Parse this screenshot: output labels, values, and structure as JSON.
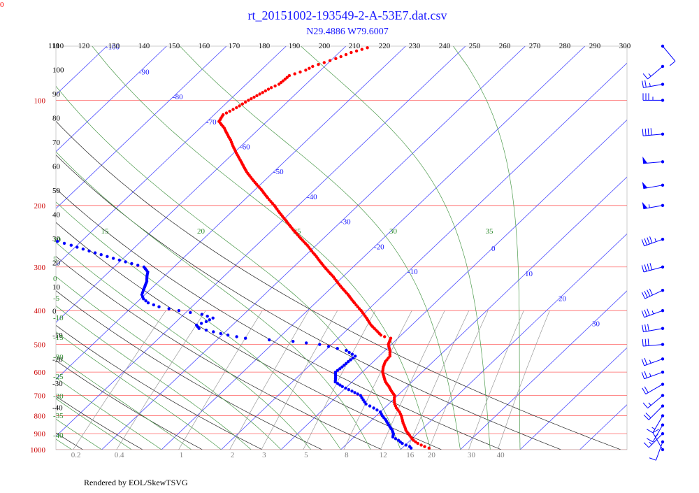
{
  "header": {
    "title": "rt_20151002-193549-2-A-53E7.dat.csv",
    "subtitle": "N29.4886 W79.6007",
    "corner_label": "0"
  },
  "footer": {
    "credit": "Rendered by EOL/SkewTSVG"
  },
  "colors": {
    "isobar": "#ff6666",
    "isotherm": "#4d4dff",
    "dry_adiabat": "#222222",
    "moist_adiabat": "#4c9a4c",
    "mixing_ratio": "#9a9a9a",
    "temperature": "#ff0000",
    "dewpoint": "#0000ff",
    "wind": "#0000ff",
    "pressure_label": "#cc0000",
    "theta_label": "#000000",
    "isotherm_label": "#1a1aff",
    "moist_label": "#2e8b2e",
    "mixing_label": "#808080"
  },
  "chart_data": {
    "type": "skew-t",
    "xlabel": "",
    "ylabel": "",
    "pressure_levels": [
      100,
      200,
      300,
      400,
      500,
      600,
      700,
      800,
      900,
      1000
    ],
    "pressure_range": [
      1000,
      70
    ],
    "temperature_range_at_surface": [
      -40,
      50
    ],
    "isotherm_labels": [
      -110,
      -100,
      -90,
      -80,
      -70,
      -60,
      -50,
      -40,
      -30,
      -20,
      -10,
      0,
      10,
      20,
      30
    ],
    "dry_adiabat_theta_K": [
      110,
      120,
      130,
      140,
      150,
      160,
      170,
      180,
      190,
      200,
      210,
      220,
      230,
      240,
      250,
      260,
      270,
      280,
      290,
      300
    ],
    "left_theta_labels": [
      110,
      100,
      90,
      80,
      70,
      60,
      50,
      40,
      30,
      20,
      10,
      0,
      -10,
      -20,
      -30,
      -40
    ],
    "moist_adiabat_thetaw_C": [
      -40,
      -35,
      -30,
      -25,
      -20,
      -15,
      -10,
      -5,
      0,
      5,
      10,
      15,
      20,
      25,
      30,
      35
    ],
    "moist_top_labels": [
      15,
      20,
      25,
      30,
      35
    ],
    "moist_left_labels": [
      10,
      5,
      0,
      -5,
      -10,
      -15,
      -20,
      -25,
      -30,
      -35,
      -40
    ],
    "mixing_ratio_gkg": [
      0.2,
      0.4,
      1,
      2,
      3,
      5,
      8,
      12,
      16,
      20,
      30,
      40
    ],
    "mixing_ratio_labels": [
      "0.2",
      "0.4",
      "1",
      "2",
      "3",
      "5",
      "8",
      "12",
      "16",
      "20",
      "30",
      "40"
    ],
    "series": [
      {
        "kind": "temperature",
        "points": [
          [
            990,
            24.5
          ],
          [
            980,
            23.5
          ],
          [
            960,
            21.8
          ],
          [
            940,
            20.5
          ],
          [
            920,
            19.5
          ],
          [
            900,
            18.5
          ],
          [
            880,
            17.5
          ],
          [
            860,
            16.7
          ],
          [
            840,
            15.8
          ],
          [
            820,
            15.0
          ],
          [
            800,
            14.2
          ],
          [
            780,
            13.2
          ],
          [
            760,
            12.0
          ],
          [
            740,
            11.0
          ],
          [
            720,
            10.2
          ],
          [
            700,
            9.5
          ],
          [
            680,
            8.2
          ],
          [
            660,
            7.0
          ],
          [
            640,
            5.6
          ],
          [
            620,
            4.5
          ],
          [
            600,
            3.4
          ],
          [
            580,
            2.6
          ],
          [
            560,
            2.0
          ],
          [
            540,
            1.8
          ],
          [
            520,
            0.8
          ],
          [
            500,
            -0.5
          ],
          [
            480,
            -1.2
          ],
          [
            475,
            -2.5
          ],
          [
            470,
            -3.4
          ],
          [
            460,
            -4.5
          ],
          [
            440,
            -6.8
          ],
          [
            420,
            -8.8
          ],
          [
            400,
            -11.0
          ],
          [
            380,
            -13.5
          ],
          [
            360,
            -16.0
          ],
          [
            340,
            -18.8
          ],
          [
            320,
            -21.6
          ],
          [
            300,
            -24.8
          ],
          [
            280,
            -28.0
          ],
          [
            260,
            -31.5
          ],
          [
            240,
            -35.5
          ],
          [
            220,
            -39.6
          ],
          [
            200,
            -44.0
          ],
          [
            190,
            -46.5
          ],
          [
            180,
            -49.0
          ],
          [
            170,
            -51.8
          ],
          [
            160,
            -54.6
          ],
          [
            150,
            -57.2
          ],
          [
            140,
            -60.0
          ],
          [
            130,
            -62.8
          ],
          [
            120,
            -66.0
          ],
          [
            115,
            -68.0
          ],
          [
            110,
            -68.5
          ],
          [
            105,
            -67.5
          ],
          [
            100,
            -66.8
          ],
          [
            96,
            -66.0
          ],
          [
            92,
            -65.2
          ],
          [
            90,
            -64.5
          ],
          [
            85,
            -64.3
          ],
          [
            82,
            -62.5
          ],
          [
            80,
            -62.0
          ],
          [
            76,
            -59.5
          ],
          [
            73,
            -58.0
          ],
          [
            70,
            -55.5
          ]
        ]
      },
      {
        "kind": "dewpoint",
        "points": [
          [
            990,
            21.5
          ],
          [
            980,
            21.0
          ],
          [
            960,
            19.2
          ],
          [
            940,
            18.0
          ],
          [
            920,
            16.5
          ],
          [
            900,
            16.0
          ],
          [
            880,
            15.2
          ],
          [
            860,
            14.2
          ],
          [
            840,
            13.2
          ],
          [
            820,
            12.2
          ],
          [
            800,
            11.0
          ],
          [
            780,
            10.0
          ],
          [
            760,
            8.2
          ],
          [
            740,
            6.2
          ],
          [
            720,
            5.0
          ],
          [
            700,
            3.8
          ],
          [
            680,
            1.6
          ],
          [
            660,
            -0.8
          ],
          [
            640,
            -2.8
          ],
          [
            620,
            -3.6
          ],
          [
            600,
            -4.5
          ],
          [
            580,
            -4.3
          ],
          [
            560,
            -4.2
          ],
          [
            540,
            -4.0
          ],
          [
            520,
            -6.5
          ],
          [
            500,
            -12.0
          ],
          [
            490,
            -17.0
          ],
          [
            480,
            -25.5
          ],
          [
            470,
            -29.0
          ],
          [
            460,
            -32.0
          ],
          [
            450,
            -35.0
          ],
          [
            440,
            -36.0
          ],
          [
            430,
            -35.0
          ],
          [
            420,
            -34.5
          ],
          [
            410,
            -37.0
          ],
          [
            400,
            -41.5
          ],
          [
            390,
            -45.5
          ],
          [
            380,
            -48.0
          ],
          [
            370,
            -49.5
          ],
          [
            360,
            -50.5
          ],
          [
            350,
            -51.0
          ],
          [
            340,
            -51.5
          ],
          [
            330,
            -52.0
          ],
          [
            320,
            -52.8
          ],
          [
            310,
            -53.5
          ],
          [
            300,
            -55.0
          ],
          [
            290,
            -59.0
          ],
          [
            280,
            -63.0
          ],
          [
            270,
            -67.0
          ],
          [
            260,
            -71.0
          ],
          [
            250,
            -75.5
          ],
          [
            240,
            -80.0
          ],
          [
            230,
            -85.0
          ],
          [
            220,
            -90.0
          ],
          [
            210,
            -95.0
          ]
        ]
      }
    ],
    "wind_barbs": [
      {
        "p": 1000,
        "dir": 330,
        "kt": 15
      },
      {
        "p": 950,
        "dir": 200,
        "kt": 10
      },
      {
        "p": 900,
        "dir": 225,
        "kt": 15
      },
      {
        "p": 850,
        "dir": 210,
        "kt": 10
      },
      {
        "p": 800,
        "dir": 210,
        "kt": 15
      },
      {
        "p": 750,
        "dir": 225,
        "kt": 20
      },
      {
        "p": 700,
        "dir": 230,
        "kt": 15
      },
      {
        "p": 650,
        "dir": 240,
        "kt": 20
      },
      {
        "p": 600,
        "dir": 250,
        "kt": 25
      },
      {
        "p": 550,
        "dir": 250,
        "kt": 25
      },
      {
        "p": 500,
        "dir": 265,
        "kt": 30
      },
      {
        "p": 450,
        "dir": 260,
        "kt": 30
      },
      {
        "p": 400,
        "dir": 250,
        "kt": 35
      },
      {
        "p": 350,
        "dir": 245,
        "kt": 40
      },
      {
        "p": 300,
        "dir": 255,
        "kt": 40
      },
      {
        "p": 250,
        "dir": 250,
        "kt": 45
      },
      {
        "p": 200,
        "dir": 260,
        "kt": 55
      },
      {
        "p": 175,
        "dir": 260,
        "kt": 50
      },
      {
        "p": 150,
        "dir": 265,
        "kt": 50
      },
      {
        "p": 125,
        "dir": 265,
        "kt": 40
      },
      {
        "p": 100,
        "dir": 270,
        "kt": 35
      },
      {
        "p": 90,
        "dir": 260,
        "kt": 25
      },
      {
        "p": 80,
        "dir": 230,
        "kt": 15
      },
      {
        "p": 70,
        "dir": 140,
        "kt": 10
      }
    ]
  }
}
